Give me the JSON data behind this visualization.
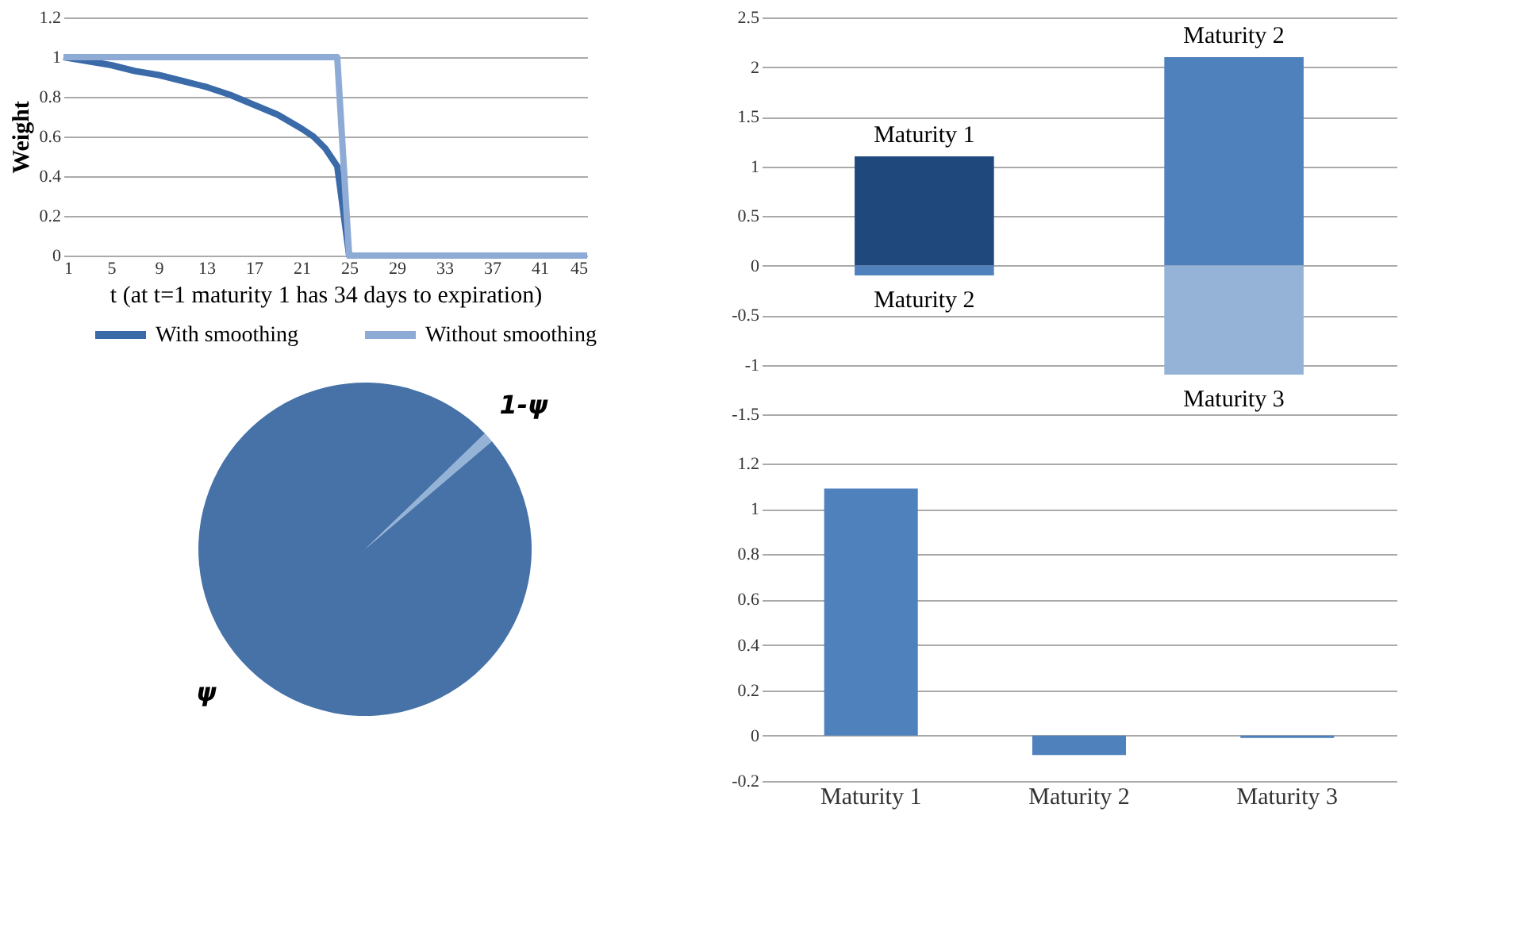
{
  "chart_data": [
    {
      "type": "line",
      "xlabel": "t (at t=1 maturity 1 has 34 days to expiration)",
      "ylabel": "Weight",
      "xlim": [
        1,
        45
      ],
      "xticks": [
        1,
        5,
        9,
        13,
        17,
        21,
        25,
        29,
        33,
        37,
        41,
        45
      ],
      "ylim": [
        0,
        1.2
      ],
      "yticks": [
        0,
        0.2,
        0.4,
        0.6,
        0.8,
        1,
        1.2
      ],
      "grid": "y",
      "legend": "bottom",
      "marker": "none",
      "line_style": "solid",
      "series": [
        {
          "name": "With smoothing",
          "color": "#3a6aa8",
          "x": [
            1,
            3,
            5,
            7,
            9,
            11,
            13,
            15,
            17,
            19,
            21,
            22,
            23,
            24,
            25,
            45
          ],
          "values": [
            1,
            0.98,
            0.96,
            0.93,
            0.91,
            0.88,
            0.85,
            0.81,
            0.76,
            0.71,
            0.64,
            0.6,
            0.54,
            0.45,
            0,
            0
          ]
        },
        {
          "name": "Without smoothing",
          "color": "#8eabd6",
          "x": [
            1,
            24,
            25,
            45
          ],
          "values": [
            1,
            1,
            0,
            0
          ]
        }
      ]
    },
    {
      "type": "bar",
      "stacked": true,
      "categories": [
        null,
        null
      ],
      "ylim": [
        -1.5,
        2.5
      ],
      "yticks": [
        -1.5,
        -1,
        -0.5,
        0,
        0.5,
        1,
        1.5,
        2,
        2.5
      ],
      "grid": "y",
      "tick_labels": "y",
      "series": [
        {
          "name": "Maturity 1",
          "color": "#1f497d",
          "values": [
            1.1,
            null
          ]
        },
        {
          "name": "Maturity 2",
          "color": "#4f81bd",
          "values": [
            -0.1,
            2.1
          ]
        },
        {
          "name": "Maturity 3",
          "color": "#95b3d7",
          "values": [
            null,
            -1.1
          ]
        }
      ]
    },
    {
      "type": "pie",
      "categories": [
        "1-ψ",
        "ψ"
      ],
      "values": [
        1,
        99
      ],
      "colors": [
        "#95b3d7",
        "#4672a8"
      ]
    },
    {
      "type": "bar",
      "categories": [
        "Maturity 1",
        "Maturity 2",
        "Maturity 3"
      ],
      "values": [
        1.09,
        -0.085,
        -0.01
      ],
      "color": "#4f81bd",
      "ylim": [
        -0.2,
        1.2
      ],
      "yticks": [
        -0.2,
        0,
        0.2,
        0.4,
        0.6,
        0.8,
        1,
        1.2
      ],
      "grid": "y"
    }
  ]
}
